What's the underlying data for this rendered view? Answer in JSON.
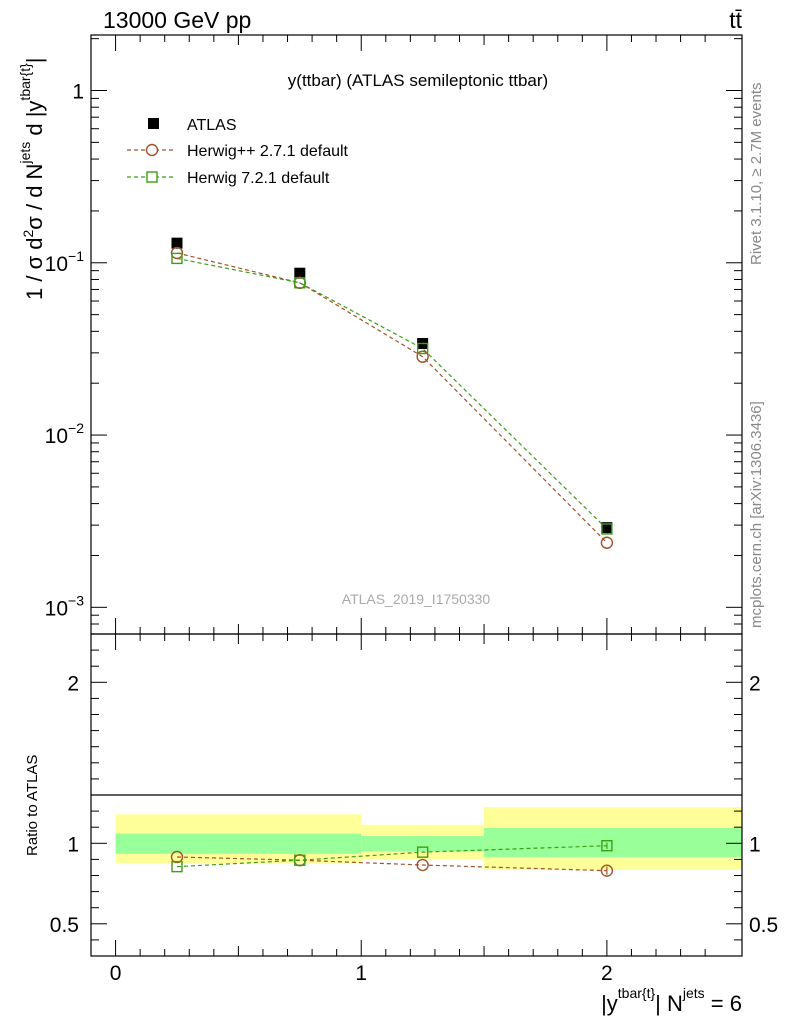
{
  "header": {
    "left": "13000 GeV pp",
    "right": "tt̄"
  },
  "side_labels": {
    "rivet": "Rivet 3.1.10, ≥ 2.7M events",
    "mcplots": "mcplots.cern.ch [arXiv:1306.3436]"
  },
  "chart_data": [
    {
      "type": "scatter",
      "panel": "main",
      "title": "y(ttbar) (ATLAS semileptonic ttbar)",
      "watermark": "ATLAS_2019_I1750330",
      "ylabel": "1 / σ d²σ / d N^jets d |y^tbar{t}|",
      "yscale": "log",
      "xlim": [
        -0.1,
        2.55
      ],
      "ylim": [
        0.0007,
        2.1
      ],
      "yticks": [
        {
          "value": 1,
          "base": "1",
          "exp": ""
        },
        {
          "value": 0.1,
          "base": "10",
          "exp": "−1"
        },
        {
          "value": 0.01,
          "base": "10",
          "exp": "−2"
        },
        {
          "value": 0.001,
          "base": "10",
          "exp": "−3"
        }
      ],
      "legend_position": "top-left",
      "series": [
        {
          "name": "ATLAS",
          "marker": "filled-square",
          "color": "#000000",
          "x": [
            0.25,
            0.75,
            1.25,
            2.0
          ],
          "y": [
            0.13,
            0.087,
            0.034,
            0.0029
          ]
        },
        {
          "name": "Herwig++ 2.7.1 default",
          "marker": "open-circle",
          "color": "#a0522d",
          "x": [
            0.25,
            0.75,
            1.25,
            2.0
          ],
          "y": [
            0.114,
            0.0765,
            0.0285,
            0.00237
          ]
        },
        {
          "name": "Herwig 7.2.1 default",
          "marker": "open-square",
          "color": "#3c9e17",
          "x": [
            0.25,
            0.75,
            1.25,
            2.0
          ],
          "y": [
            0.106,
            0.0765,
            0.0318,
            0.00285
          ]
        }
      ]
    },
    {
      "type": "line",
      "panel": "ratio",
      "ylabel": "Ratio to ATLAS",
      "xlabel": "|y^tbar{t}| N^jets = 6",
      "xlim": [
        -0.1,
        2.55
      ],
      "ylim": [
        0.3,
        2.3
      ],
      "xticks": [
        0,
        1,
        2
      ],
      "yticks": [
        0.5,
        1,
        2
      ],
      "ytick_labels": [
        "0.5",
        "1",
        "2"
      ],
      "bins": [
        {
          "lo": 0.0,
          "hi": 1.0,
          "stat": [
            0.935,
            1.06
          ],
          "total": [
            0.875,
            1.18
          ]
        },
        {
          "lo": 1.0,
          "hi": 1.5,
          "stat": [
            0.95,
            1.045
          ],
          "total": [
            0.9,
            1.115
          ]
        },
        {
          "lo": 1.5,
          "hi": 2.55,
          "stat": [
            0.915,
            1.095
          ],
          "total": [
            0.835,
            1.225
          ]
        }
      ],
      "series": [
        {
          "name": "Herwig++ 2.7.1 default",
          "marker": "open-circle",
          "color": "#a0522d",
          "x": [
            0.25,
            0.75,
            1.25,
            2.0
          ],
          "y": [
            0.915,
            0.895,
            0.865,
            0.83
          ],
          "err": [
            0.0,
            0.0,
            0.0,
            0.025
          ]
        },
        {
          "name": "Herwig 7.2.1 default",
          "marker": "open-square",
          "color": "#3c9e17",
          "x": [
            0.25,
            0.75,
            1.25,
            2.0
          ],
          "y": [
            0.855,
            0.895,
            0.945,
            0.985
          ],
          "err": [
            0.0,
            0.0,
            0.0,
            0.02
          ]
        }
      ]
    }
  ]
}
